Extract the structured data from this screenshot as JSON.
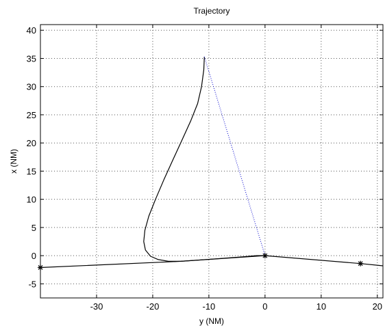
{
  "chart_data": {
    "type": "line",
    "title": "Trajectory",
    "xlabel": "y (NM)",
    "ylabel": "x (NM)",
    "xlim": [
      -40,
      21
    ],
    "ylim": [
      -7.5,
      41
    ],
    "grid": true,
    "x_ticks": [
      -30,
      -20,
      -10,
      0,
      10,
      20
    ],
    "y_ticks": [
      -5,
      0,
      5,
      10,
      15,
      20,
      25,
      30,
      35,
      40
    ],
    "colors": {
      "trajectory": "#000000",
      "path": "#000000",
      "dotted": "#0000cc",
      "grid": "#555555"
    },
    "series": [
      {
        "style": "solid",
        "x": [
          -10.8,
          -10.9,
          -11.3,
          -12.0,
          -13.2,
          -14.8,
          -16.4,
          -18.0,
          -19.5,
          -20.7,
          -21.4,
          -21.6,
          -21.3,
          -20.4,
          -19.0,
          -17.2,
          -15.0,
          -12.0,
          -8.0,
          -4.0,
          -1.5,
          0
        ],
        "y": [
          35.3,
          33.0,
          30.0,
          27.0,
          24.0,
          20.5,
          17.0,
          13.5,
          10.0,
          7.0,
          4.5,
          2.5,
          1.0,
          -0.1,
          -0.7,
          -1.0,
          -1.0,
          -0.8,
          -0.5,
          -0.2,
          0.0,
          0.0
        ]
      },
      {
        "style": "solid",
        "x": [
          -40,
          -15,
          0,
          17,
          21
        ],
        "y": [
          -2.1,
          -1.0,
          0.0,
          -1.4,
          -1.8
        ]
      },
      {
        "style": "dotted",
        "x": [
          -10.8,
          0
        ],
        "y": [
          35.3,
          0
        ]
      }
    ],
    "markers": [
      {
        "x": -40,
        "y": -2.1
      },
      {
        "x": 0,
        "y": 0.0
      },
      {
        "x": 17,
        "y": -1.4
      }
    ]
  }
}
